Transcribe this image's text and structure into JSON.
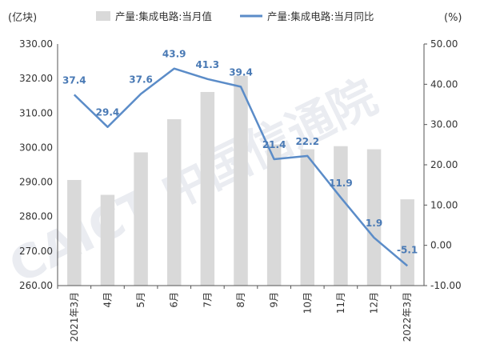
{
  "chart_data": {
    "type": "bar+line",
    "categories": [
      "2021年3月",
      "4月",
      "5月",
      "6月",
      "7月",
      "8月",
      "9月",
      "10月",
      "11月",
      "12月",
      "2022年3月"
    ],
    "series": [
      {
        "name": "产量:集成电路:当月值",
        "type": "bar",
        "axis": "left",
        "color": "#d9d9d9",
        "values": [
          290.6,
          286.3,
          298.6,
          308.2,
          316.1,
          320.8,
          300.9,
          299.5,
          300.4,
          299.5,
          285.0
        ]
      },
      {
        "name": "产量:集成电路:当月同比",
        "type": "line",
        "axis": "right",
        "color": "#5b8cc8",
        "values": [
          37.4,
          29.4,
          37.6,
          43.9,
          41.3,
          39.4,
          21.4,
          22.2,
          11.9,
          1.9,
          -5.1
        ],
        "labels": [
          "37.4",
          "29.4",
          "37.6",
          "43.9",
          "41.3",
          "39.4",
          "21.4",
          "22.2",
          "11.9",
          "1.9",
          "-5.1"
        ]
      }
    ],
    "left_unit": "(亿块)",
    "right_unit": "(%)",
    "ylim_left": [
      260,
      330
    ],
    "ylim_right": [
      -10,
      50
    ],
    "left_ticks": [
      "260.00",
      "270.00",
      "280.00",
      "290.00",
      "300.00",
      "310.00",
      "320.00",
      "330.00"
    ],
    "right_ticks": [
      "-10.00",
      "0.00",
      "10.00",
      "20.00",
      "30.00",
      "40.00",
      "50.00"
    ],
    "grid": false,
    "legend": "top-center"
  },
  "watermark": "CAICT 中国信通院"
}
